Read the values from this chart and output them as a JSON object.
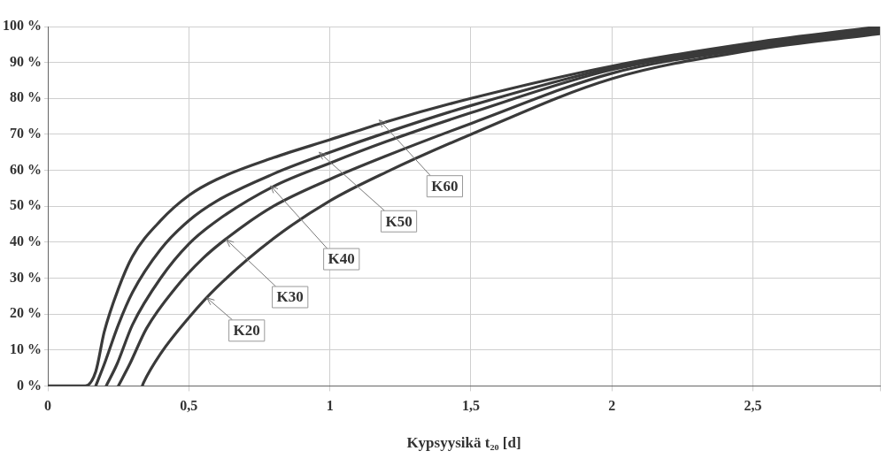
{
  "chart_data": {
    "type": "line",
    "xlabel": "Kypsyysikä t₂₀ [d]",
    "xlim": [
      0,
      2.95
    ],
    "xticks": [
      {
        "value": 0,
        "label": "0"
      },
      {
        "value": 0.5,
        "label": "0,5"
      },
      {
        "value": 1,
        "label": "1"
      },
      {
        "value": 1.5,
        "label": "1,5"
      },
      {
        "value": 2,
        "label": "2"
      },
      {
        "value": 2.5,
        "label": "2,5"
      }
    ],
    "ylim": [
      0,
      100
    ],
    "yticks": [
      {
        "value": 0,
        "label": "0 %"
      },
      {
        "value": 10,
        "label": "10 %"
      },
      {
        "value": 20,
        "label": "20 %"
      },
      {
        "value": 30,
        "label": "30 %"
      },
      {
        "value": 40,
        "label": "40 %"
      },
      {
        "value": 50,
        "label": "50 %"
      },
      {
        "value": 60,
        "label": "60 %"
      },
      {
        "value": 70,
        "label": "70 %"
      },
      {
        "value": 80,
        "label": "80 %"
      },
      {
        "value": 90,
        "label": "90 %"
      },
      {
        "value": 100,
        "label": "100 %"
      }
    ],
    "grid": true,
    "legend": false,
    "marker": "none",
    "line_style": "solid",
    "series": [
      {
        "color": "#3a3a3a",
        "x": [
          0,
          0.133,
          0.17,
          0.2,
          0.25,
          0.3,
          0.4,
          0.5,
          0.6,
          0.8,
          1,
          1.2,
          1.5,
          2,
          2.5,
          2.95
        ],
        "values": [
          0,
          0,
          4,
          15,
          27,
          36,
          46,
          53,
          57.5,
          63.5,
          68.5,
          73.5,
          80,
          89,
          95.5,
          100
        ]
      },
      {
        "color": "#3a3a3a",
        "x": [
          0.17,
          0.2,
          0.25,
          0.3,
          0.4,
          0.5,
          0.6,
          0.8,
          1,
          1.2,
          1.5,
          2,
          2.5,
          2.95
        ],
        "values": [
          0,
          6,
          17,
          26,
          38,
          46,
          51.5,
          59,
          65,
          70.5,
          78,
          88.5,
          95,
          99.5
        ]
      },
      {
        "color": "#3a3a3a",
        "x": [
          0.207,
          0.245,
          0.3,
          0.4,
          0.5,
          0.6,
          0.8,
          1,
          1.2,
          1.5,
          2,
          2.5,
          2.95
        ],
        "values": [
          0,
          6,
          17,
          30,
          39.5,
          46,
          55.5,
          62,
          68,
          76,
          88,
          94.5,
          99
        ]
      },
      {
        "color": "#3a3a3a",
        "x": [
          0.25,
          0.29,
          0.35,
          0.45,
          0.55,
          0.65,
          0.8,
          1,
          1.2,
          1.5,
          2,
          2.5,
          2.95
        ],
        "values": [
          0,
          6,
          16,
          27,
          35.5,
          42,
          50,
          57.5,
          64,
          73,
          87,
          94,
          98.5
        ]
      },
      {
        "color": "#3a3a3a",
        "x": [
          0.335,
          0.34,
          0.4,
          0.5,
          0.6,
          0.8,
          1,
          1.2,
          1.5,
          2,
          2.5,
          2.95
        ],
        "values": [
          0,
          1,
          9,
          19,
          27.5,
          41,
          51.5,
          59.5,
          70,
          85.5,
          93.5,
          98
        ]
      }
    ],
    "annotations": [
      {
        "text": "K60",
        "x": 1.175,
        "y": 74
      },
      {
        "text": "K50",
        "x": 0.962,
        "y": 65
      },
      {
        "text": "K40",
        "x": 0.79,
        "y": 55.7
      },
      {
        "text": "K30",
        "x": 0.633,
        "y": 40.7
      },
      {
        "text": "K20",
        "x": 0.564,
        "y": 24.5
      }
    ]
  }
}
